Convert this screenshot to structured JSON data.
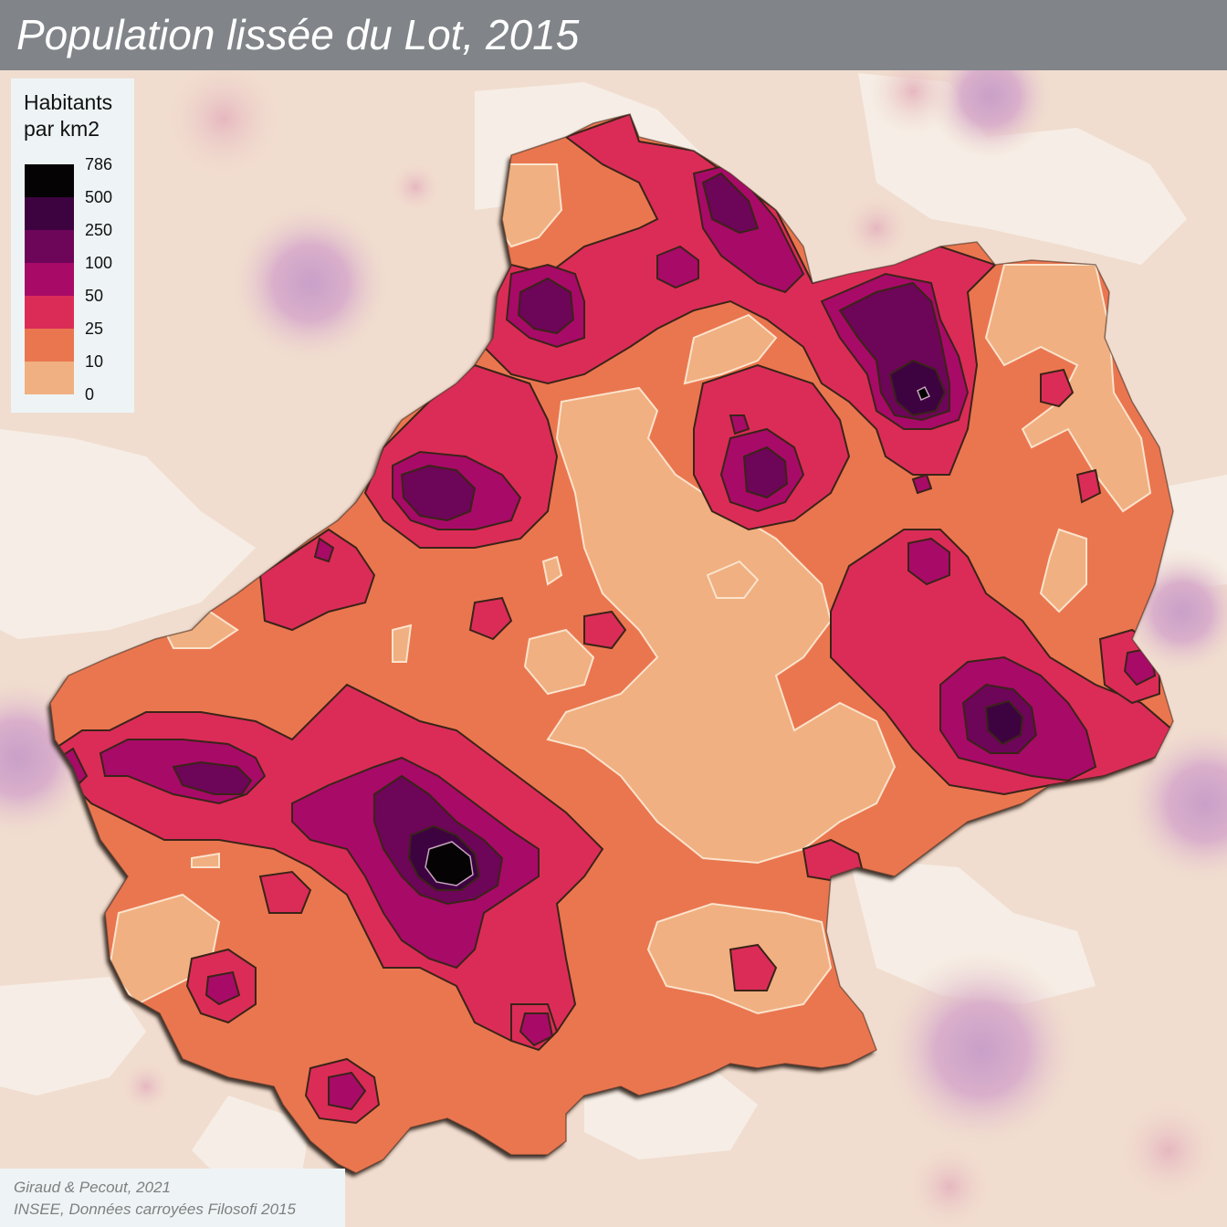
{
  "title": "Population lissée du Lot, 2015",
  "legend": {
    "title_line1": "Habitants",
    "title_line2": "par km2",
    "classes": [
      {
        "from": 500,
        "to": 786,
        "color": "#050304"
      },
      {
        "from": 250,
        "to": 500,
        "color": "#3d0340"
      },
      {
        "from": 100,
        "to": 250,
        "color": "#6d0558"
      },
      {
        "from": 50,
        "to": 100,
        "color": "#a80a68"
      },
      {
        "from": 25,
        "to": 50,
        "color": "#db2c58"
      },
      {
        "from": 10,
        "to": 25,
        "color": "#ea7650"
      },
      {
        "from": 0,
        "to": 10,
        "color": "#f0b081"
      }
    ],
    "ticks": [
      "786",
      "500",
      "250",
      "100",
      "50",
      "25",
      "10",
      "0"
    ]
  },
  "credits": {
    "line1": "Giraud & Pecout, 2021",
    "line2": "INSEE, Données carroyées Filosofi 2015"
  },
  "colors": {
    "background": "#f1ddcf",
    "outside_light": "#f6eee6",
    "outside_pink": "#e9bfc6",
    "outside_purple": "#d9a9c5",
    "title_bar": "#818589",
    "panel": "#eef4f6"
  }
}
